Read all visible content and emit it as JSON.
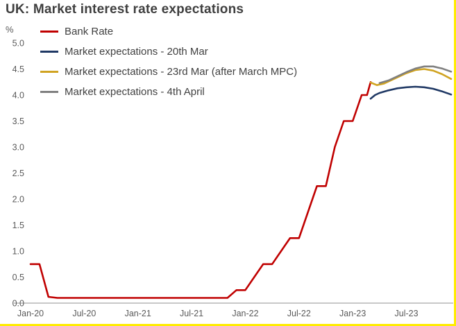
{
  "page": {
    "accent_border_color": "#ffec00"
  },
  "chart_data": {
    "type": "line",
    "title": "UK: Market interest rate expectations",
    "ylabel": "%",
    "xlabel": "",
    "ylim": [
      0.0,
      5.0
    ],
    "ytick_step": 0.5,
    "xlim": [
      0,
      47
    ],
    "x_unit": "months since Jan-20",
    "xtick_positions": [
      0,
      6,
      12,
      18,
      24,
      30,
      36,
      42
    ],
    "xtick_labels": [
      "Jan-20",
      "Jul-20",
      "Jan-21",
      "Jul-21",
      "Jan-22",
      "Jul-22",
      "Jan-23",
      "Jul-23"
    ],
    "grid": false,
    "legend_position": "top-left-inside",
    "series": [
      {
        "name": "Bank Rate",
        "color": "#c00000",
        "points": [
          [
            0,
            0.75
          ],
          [
            1,
            0.75
          ],
          [
            2,
            0.12
          ],
          [
            3,
            0.1
          ],
          [
            22,
            0.1
          ],
          [
            23,
            0.25
          ],
          [
            24,
            0.25
          ],
          [
            25,
            0.5
          ],
          [
            26,
            0.75
          ],
          [
            27,
            0.75
          ],
          [
            28,
            1.0
          ],
          [
            29,
            1.25
          ],
          [
            30,
            1.25
          ],
          [
            31,
            1.75
          ],
          [
            32,
            2.25
          ],
          [
            33,
            2.25
          ],
          [
            34,
            3.0
          ],
          [
            35,
            3.5
          ],
          [
            36,
            3.5
          ],
          [
            37,
            4.0
          ],
          [
            37.6,
            4.0
          ],
          [
            38,
            4.25
          ]
        ]
      },
      {
        "name": "Market expectations - 20th Mar",
        "color": "#1f3864",
        "points": [
          [
            38,
            3.93
          ],
          [
            38.5,
            4.0
          ],
          [
            39,
            4.04
          ],
          [
            40,
            4.09
          ],
          [
            41,
            4.13
          ],
          [
            42,
            4.15
          ],
          [
            43,
            4.16
          ],
          [
            44,
            4.15
          ],
          [
            45,
            4.12
          ],
          [
            46,
            4.07
          ],
          [
            47,
            4.01
          ]
        ]
      },
      {
        "name": "Market expectations - 23rd Mar (after March MPC)",
        "color": "#d0a321",
        "points": [
          [
            38,
            4.24
          ],
          [
            38.7,
            4.19
          ],
          [
            39.5,
            4.22
          ],
          [
            40,
            4.26
          ],
          [
            41,
            4.34
          ],
          [
            42,
            4.42
          ],
          [
            43,
            4.48
          ],
          [
            44,
            4.5
          ],
          [
            45,
            4.47
          ],
          [
            46,
            4.4
          ],
          [
            47,
            4.31
          ]
        ]
      },
      {
        "name": "Market expectations - 4th April",
        "color": "#7f7f7f",
        "points": [
          [
            39,
            4.23
          ],
          [
            40,
            4.28
          ],
          [
            41,
            4.36
          ],
          [
            42,
            4.44
          ],
          [
            43,
            4.51
          ],
          [
            44,
            4.55
          ],
          [
            45,
            4.55
          ],
          [
            46,
            4.51
          ],
          [
            47,
            4.45
          ]
        ]
      }
    ]
  }
}
